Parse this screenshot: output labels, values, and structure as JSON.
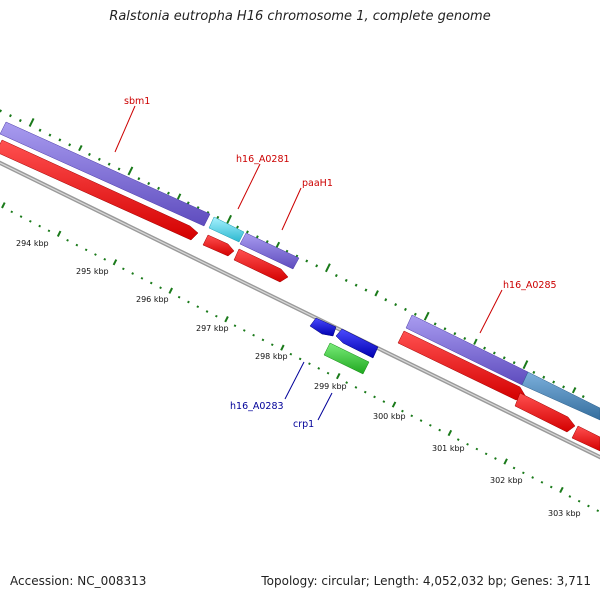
{
  "title": "Ralstonia eutropha H16 chromosome 1, complete genome",
  "footer": {
    "accession": "Accession: NC_008313",
    "stats": "Topology: circular; Length: 4,052,032 bp; Genes: 3,711"
  },
  "kbp_labels": [
    "294 kbp",
    "295 kbp",
    "296 kbp",
    "297 kbp",
    "298 kbp",
    "299 kbp",
    "300 kbp",
    "301 kbp",
    "302 kbp",
    "303 kbp"
  ],
  "gene_labels": {
    "sbm1": "sbm1",
    "h16_A0281": "h16_A0281",
    "paaH1": "paaH1",
    "h16_A0285": "h16_A0285",
    "h16_A0283": "h16_A0283",
    "crp1": "crp1"
  },
  "colors": {
    "cds": "#ff0000",
    "gene_purple": "#7a68d0",
    "gene_cyan": "#4fd4e0",
    "gene_blue": "#0000ee",
    "gene_green": "#33cc33",
    "gene_steel": "#4a86b8",
    "tick": "#1a7a1a",
    "backbone": "#888888",
    "label_fwd": "#cc0000",
    "label_rev": "#000099"
  }
}
